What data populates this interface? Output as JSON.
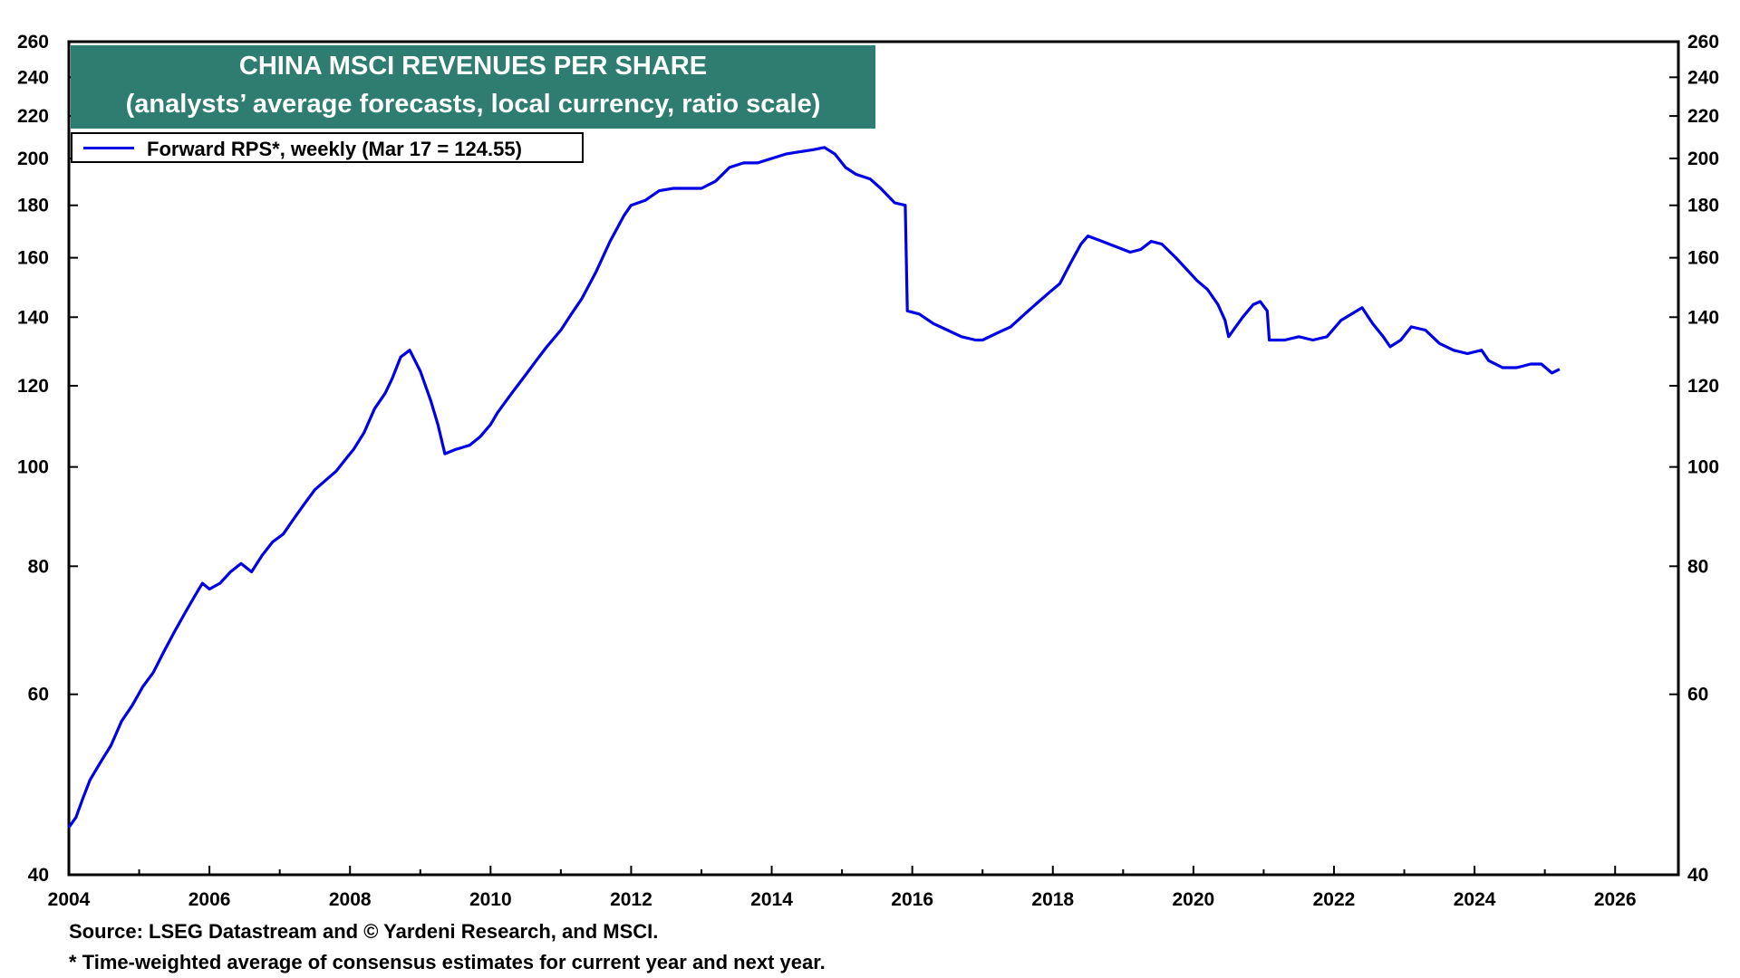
{
  "chart_data": {
    "type": "line",
    "title": "CHINA MSCI REVENUES PER SHARE",
    "subtitle": "(analysts’ average forecasts, local currency, ratio scale)",
    "y_scale": "log",
    "ylim": [
      40,
      260
    ],
    "xlim": [
      2004.0,
      2026.9
    ],
    "y_ticks": [
      40,
      60,
      80,
      100,
      120,
      140,
      160,
      180,
      200,
      220,
      240,
      260
    ],
    "x_ticks": [
      2004,
      2006,
      2008,
      2010,
      2012,
      2014,
      2016,
      2018,
      2020,
      2022,
      2024,
      2026
    ],
    "legend_position": "top-left",
    "grid": false,
    "line_color": "#0000e6",
    "series": [
      {
        "name": "Forward RPS*, weekly (Mar 17 = 124.55)",
        "x": [
          2004.0,
          2004.1,
          2004.2,
          2004.3,
          2004.45,
          2004.6,
          2004.75,
          2004.9,
          2005.05,
          2005.2,
          2005.35,
          2005.5,
          2005.65,
          2005.8,
          2005.9,
          2006.0,
          2006.15,
          2006.3,
          2006.45,
          2006.6,
          2006.75,
          2006.9,
          2007.05,
          2007.2,
          2007.35,
          2007.5,
          2007.65,
          2007.8,
          2007.95,
          2008.05,
          2008.2,
          2008.35,
          2008.5,
          2008.6,
          2008.72,
          2008.85,
          2009.0,
          2009.15,
          2009.25,
          2009.35,
          2009.5,
          2009.7,
          2009.85,
          2010.0,
          2010.1,
          2010.3,
          2010.5,
          2010.65,
          2010.8,
          2011.0,
          2011.15,
          2011.3,
          2011.5,
          2011.7,
          2011.9,
          2012.0,
          2012.2,
          2012.4,
          2012.6,
          2012.8,
          2013.0,
          2013.2,
          2013.4,
          2013.6,
          2013.8,
          2014.0,
          2014.2,
          2014.4,
          2014.6,
          2014.75,
          2014.9,
          2015.05,
          2015.2,
          2015.4,
          2015.55,
          2015.75,
          2015.9,
          2015.93,
          2016.1,
          2016.3,
          2016.5,
          2016.7,
          2016.9,
          2017.0,
          2017.2,
          2017.4,
          2017.6,
          2017.8,
          2017.95,
          2018.1,
          2018.25,
          2018.4,
          2018.5,
          2018.7,
          2018.9,
          2019.1,
          2019.25,
          2019.4,
          2019.55,
          2019.75,
          2019.9,
          2020.05,
          2020.2,
          2020.35,
          2020.45,
          2020.5,
          2020.7,
          2020.85,
          2020.95,
          2021.05,
          2021.08,
          2021.3,
          2021.5,
          2021.7,
          2021.9,
          2022.1,
          2022.25,
          2022.4,
          2022.55,
          2022.7,
          2022.8,
          2022.95,
          2023.1,
          2023.3,
          2023.5,
          2023.7,
          2023.9,
          2024.1,
          2024.2,
          2024.4,
          2024.6,
          2024.8,
          2024.95,
          2025.1,
          2025.21
        ],
        "values": [
          44.5,
          45.5,
          47.5,
          49.5,
          51.5,
          53.5,
          56.5,
          58.5,
          61,
          63,
          66,
          69,
          72,
          75,
          77,
          76,
          77,
          79,
          80.5,
          79,
          82,
          84.5,
          86,
          89,
          92,
          95,
          97,
          99,
          102,
          104,
          108,
          114,
          118,
          122,
          128,
          130,
          124,
          116,
          110,
          103,
          104,
          105,
          107,
          110,
          113,
          118,
          123,
          127,
          131,
          136,
          141,
          146,
          155,
          166,
          176,
          180,
          182,
          186,
          187,
          187,
          187,
          190,
          196,
          198,
          198,
          200,
          202,
          203,
          204,
          205,
          202,
          196,
          193,
          191,
          187,
          181,
          180,
          142,
          141,
          138,
          136,
          134,
          133,
          133,
          135,
          137,
          141,
          145,
          148,
          151,
          158,
          165,
          168,
          166,
          164,
          162,
          163,
          166,
          165,
          160,
          156,
          152,
          149,
          144,
          139,
          134,
          140,
          144,
          145,
          142,
          133,
          133,
          134,
          133,
          134,
          139,
          141,
          143,
          138,
          134,
          131,
          133,
          137,
          136,
          132,
          130,
          129,
          130,
          127,
          125,
          125,
          126,
          126,
          123.5,
          124.55
        ]
      }
    ]
  },
  "title": {
    "line1": "CHINA MSCI REVENUES PER SHARE",
    "line2": "(analysts’ average forecasts, local currency, ratio scale)"
  },
  "legend": {
    "label": "Forward RPS*, weekly (Mar 17 = 124.55)"
  },
  "footer": {
    "source": "Source: LSEG Datastream and © Yardeni Research, and MSCI.",
    "footnote": "* Time-weighted average of consensus estimates for current year and next year."
  }
}
